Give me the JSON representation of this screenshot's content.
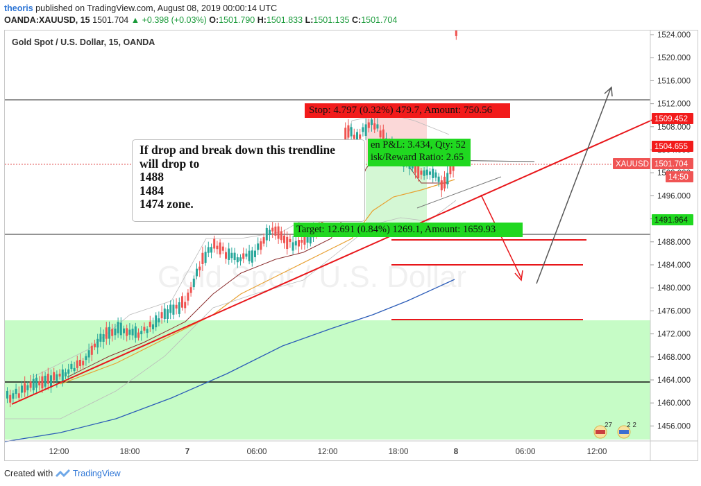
{
  "header": {
    "author": "theoris",
    "published_text": "published on TradingView.com, August 08, 2019 00:00:14 UTC",
    "symbol": "OANDA:XAUUSD, 15",
    "price": "1501.704",
    "change": "+0.398 (+0.03%)",
    "o_label": "O:",
    "o_value": "1501.790",
    "h_label": "H:",
    "h_value": "1501.833",
    "l_label": "L:",
    "l_value": "1501.135",
    "c_label": "C:",
    "c_value": "1501.704"
  },
  "chart": {
    "legend": "Gold Spot / U.S. Dollar, 15, OANDA",
    "watermark": "Gold Spot / U.S. Dollar",
    "annotation_lines": [
      "If drop and break down this trendline",
      "will drop to",
      "1488",
      "1484",
      "1474 zone."
    ],
    "stop_label": "Stop: 4.797 (0.32%) 479.7, Amount: 750.56",
    "pnl_line1": "en P&L: 3.434, Qty: 52",
    "pnl_line2": "isk/Reward Ratio: 2.65",
    "target_label": "Target: 12.691 (0.84%) 1269.1, Amount: 1659.93",
    "icon_badges": [
      "27",
      "2 2"
    ],
    "colors": {
      "up_candle": "#26a69a",
      "down_candle": "#ef5350",
      "trendline": "#e8161a",
      "support_zone": "#c6fcc6",
      "stop_box": "#f21b1b",
      "target_box": "#20d820",
      "ma_slow": "#2b5cb8"
    }
  },
  "price_axis": {
    "ticks": [
      "1524.000",
      "1520.000",
      "1516.000",
      "1512.000",
      "1508.000",
      "1504.000",
      "1500.000",
      "1496.000",
      "1492.000",
      "1488.000",
      "1484.000",
      "1480.000",
      "1476.000",
      "1472.000",
      "1468.000",
      "1464.000",
      "1460.000",
      "1456.000"
    ],
    "labels": [
      {
        "text": "1509.452",
        "bg": "#f21b1b",
        "fg": "#ffffff"
      },
      {
        "text": "1504.655",
        "bg": "#f21b1b",
        "fg": "#ffffff"
      },
      {
        "text": "XAUUSD",
        "bg": "#f05454",
        "fg": "#ffffff"
      },
      {
        "text": "1501.704",
        "bg": "#f05454",
        "fg": "#ffffff"
      },
      {
        "text": "14:50",
        "bg": "#f05454",
        "fg": "#ffffff"
      },
      {
        "text": "1491.964",
        "bg": "#20d820",
        "fg": "#111111"
      }
    ]
  },
  "time_axis": {
    "ticks": [
      "12:00",
      "18:00",
      "7",
      "06:00",
      "12:00",
      "18:00",
      "8",
      "06:00",
      "12:00"
    ]
  },
  "footer": {
    "created_with": "Created with",
    "brand": "TradingView"
  }
}
